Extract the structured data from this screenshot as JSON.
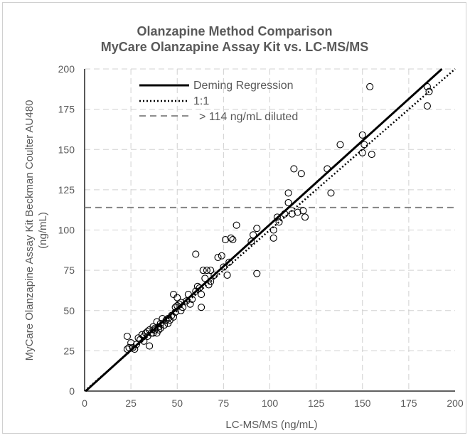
{
  "chart_data": {
    "type": "scatter",
    "title": "Olanzapine Method Comparison",
    "subtitle": "MyCare Olanzapine Assay Kit vs. LC-MS/MS",
    "xlabel": "LC-MS/MS (ng/mL)",
    "ylabel_line1": "MyCare Olanzapine Assay Kit Beckman Coulter AU480",
    "ylabel_line2": "(ng/mL)",
    "xlim": [
      0,
      200
    ],
    "ylim": [
      0,
      200
    ],
    "x_ticks": [
      "0",
      "25",
      "50",
      "75",
      "100",
      "125",
      "150",
      "175",
      "200"
    ],
    "y_ticks": [
      "0",
      "25",
      "50",
      "75",
      "100",
      "125",
      "150",
      "175",
      "200"
    ],
    "grid": true,
    "legend_position": "top-left",
    "legend": [
      {
        "label": "Deming Regression",
        "style": "solid"
      },
      {
        "label": "1:1",
        "style": "dotted"
      },
      {
        "label": "> 114 ng/mL diluted",
        "style": "dashed"
      }
    ],
    "deming": {
      "slope": 1.04,
      "intercept": -0.6
    },
    "identity": {
      "slope": 1,
      "intercept": 0
    },
    "dilution_threshold": 114,
    "points": [
      [
        23,
        26
      ],
      [
        23,
        34
      ],
      [
        24,
        27
      ],
      [
        25,
        30
      ],
      [
        26,
        27
      ],
      [
        27,
        26
      ],
      [
        28,
        29
      ],
      [
        29,
        33
      ],
      [
        30,
        32
      ],
      [
        31,
        35
      ],
      [
        32,
        31
      ],
      [
        32,
        34
      ],
      [
        33,
        36
      ],
      [
        34,
        34
      ],
      [
        34,
        37
      ],
      [
        35,
        28
      ],
      [
        35,
        38
      ],
      [
        36,
        36
      ],
      [
        37,
        36
      ],
      [
        37,
        40
      ],
      [
        38,
        38
      ],
      [
        38,
        39
      ],
      [
        39,
        36
      ],
      [
        39,
        43
      ],
      [
        40,
        40
      ],
      [
        40,
        38
      ],
      [
        41,
        42
      ],
      [
        41,
        39
      ],
      [
        42,
        45
      ],
      [
        43,
        41
      ],
      [
        44,
        44
      ],
      [
        45,
        42
      ],
      [
        45,
        45
      ],
      [
        46,
        44
      ],
      [
        47,
        47
      ],
      [
        48,
        46
      ],
      [
        48,
        60
      ],
      [
        49,
        49
      ],
      [
        49,
        52
      ],
      [
        50,
        58
      ],
      [
        50,
        53
      ],
      [
        51,
        54
      ],
      [
        52,
        55
      ],
      [
        52,
        50
      ],
      [
        53,
        52
      ],
      [
        55,
        56
      ],
      [
        56,
        60
      ],
      [
        57,
        54
      ],
      [
        58,
        57
      ],
      [
        60,
        62
      ],
      [
        60,
        85
      ],
      [
        61,
        65
      ],
      [
        62,
        64
      ],
      [
        63,
        52
      ],
      [
        63,
        60
      ],
      [
        64,
        75
      ],
      [
        65,
        70
      ],
      [
        66,
        75
      ],
      [
        67,
        66
      ],
      [
        68,
        68
      ],
      [
        68,
        75
      ],
      [
        70,
        72
      ],
      [
        72,
        83
      ],
      [
        74,
        84
      ],
      [
        75,
        77
      ],
      [
        76,
        94
      ],
      [
        77,
        72
      ],
      [
        78,
        80
      ],
      [
        79,
        95
      ],
      [
        80,
        94
      ],
      [
        82,
        103
      ],
      [
        90,
        93
      ],
      [
        91,
        97
      ],
      [
        93,
        73
      ],
      [
        93,
        101
      ],
      [
        102,
        100
      ],
      [
        102,
        95
      ],
      [
        104,
        108
      ],
      [
        105,
        105
      ],
      [
        108,
        110
      ],
      [
        110,
        123
      ],
      [
        110,
        117
      ],
      [
        112,
        110
      ],
      [
        113,
        138
      ],
      [
        115,
        111
      ],
      [
        117,
        135
      ],
      [
        118,
        112
      ],
      [
        119,
        108
      ],
      [
        131,
        138
      ],
      [
        133,
        123
      ],
      [
        138,
        153
      ],
      [
        150,
        159
      ],
      [
        150,
        148
      ],
      [
        151,
        153
      ],
      [
        154,
        189
      ],
      [
        155,
        147
      ],
      [
        185,
        177
      ],
      [
        185,
        189
      ],
      [
        186,
        186
      ]
    ]
  }
}
